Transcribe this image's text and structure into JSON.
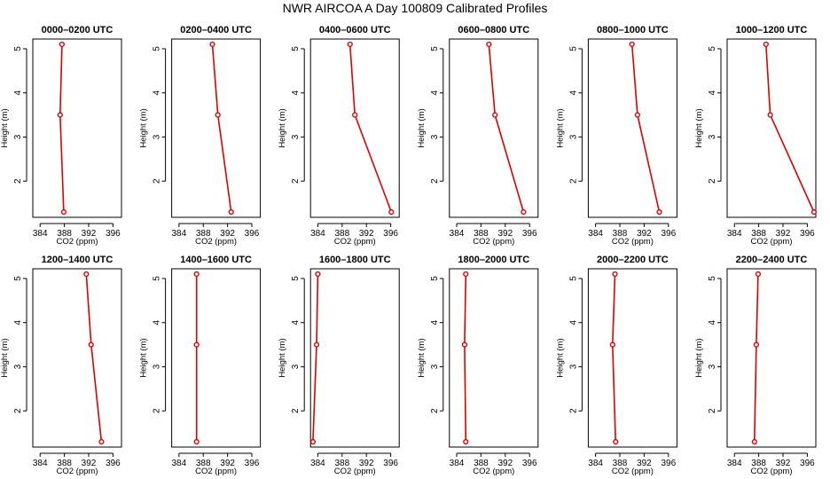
{
  "figure": {
    "title": "NWR AIRCOA A  Day 100809  Calibrated Profiles"
  },
  "style": {
    "line_color": "#dd0000",
    "point_fill": "#ffffff",
    "axis_color": "#000000"
  },
  "chart_data": [
    {
      "type": "line",
      "title": "0000–0200 UTC",
      "xlabel": "CO2 (ppm)",
      "ylabel": "Height (m)",
      "xlim": [
        382.8,
        397.4
      ],
      "ylim": [
        1.18,
        5.22
      ],
      "grid": false,
      "x_ticks": [
        "384",
        "388",
        "392",
        "396"
      ],
      "x_tick_values": [
        384,
        388,
        392,
        396
      ],
      "y_ticks": [
        "2",
        "3",
        "4",
        "5"
      ],
      "y_tick_values": [
        2,
        3,
        4,
        5
      ],
      "series": [
        {
          "x": [
            387.6,
            387.3,
            387.9
          ],
          "y": [
            5.1,
            3.5,
            1.3
          ]
        }
      ]
    },
    {
      "type": "line",
      "title": "0200–0400 UTC",
      "xlabel": "CO2 (ppm)",
      "ylabel": "Height (m)",
      "xlim": [
        382.8,
        397.4
      ],
      "ylim": [
        1.18,
        5.22
      ],
      "grid": false,
      "x_ticks": [
        "384",
        "388",
        "392",
        "396"
      ],
      "x_tick_values": [
        384,
        388,
        392,
        396
      ],
      "y_ticks": [
        "2",
        "3",
        "4",
        "5"
      ],
      "y_tick_values": [
        2,
        3,
        4,
        5
      ],
      "series": [
        {
          "x": [
            389.5,
            390.4,
            392.6
          ],
          "y": [
            5.1,
            3.5,
            1.3
          ]
        }
      ]
    },
    {
      "type": "line",
      "title": "0400–0600 UTC",
      "xlabel": "CO2 (ppm)",
      "ylabel": "Height (m)",
      "xlim": [
        382.8,
        397.4
      ],
      "ylim": [
        1.18,
        5.22
      ],
      "grid": false,
      "x_ticks": [
        "384",
        "388",
        "392",
        "396"
      ],
      "x_tick_values": [
        384,
        388,
        392,
        396
      ],
      "y_ticks": [
        "2",
        "3",
        "4",
        "5"
      ],
      "y_tick_values": [
        2,
        3,
        4,
        5
      ],
      "series": [
        {
          "x": [
            389.3,
            390.1,
            396.1
          ],
          "y": [
            5.1,
            3.5,
            1.3
          ]
        }
      ]
    },
    {
      "type": "line",
      "title": "0600–0800 UTC",
      "xlabel": "CO2 (ppm)",
      "ylabel": "Height (m)",
      "xlim": [
        382.8,
        397.4
      ],
      "ylim": [
        1.18,
        5.22
      ],
      "grid": false,
      "x_ticks": [
        "384",
        "388",
        "392",
        "396"
      ],
      "x_tick_values": [
        384,
        388,
        392,
        396
      ],
      "y_ticks": [
        "2",
        "3",
        "4",
        "5"
      ],
      "y_tick_values": [
        2,
        3,
        4,
        5
      ],
      "series": [
        {
          "x": [
            389.3,
            390.3,
            395.0
          ],
          "y": [
            5.1,
            3.5,
            1.3
          ]
        }
      ]
    },
    {
      "type": "line",
      "title": "0800–1000 UTC",
      "xlabel": "CO2 (ppm)",
      "ylabel": "Height (m)",
      "xlim": [
        382.8,
        397.4
      ],
      "ylim": [
        1.18,
        5.22
      ],
      "grid": false,
      "x_ticks": [
        "384",
        "388",
        "392",
        "396"
      ],
      "x_tick_values": [
        384,
        388,
        392,
        396
      ],
      "y_ticks": [
        "2",
        "3",
        "4",
        "5"
      ],
      "y_tick_values": [
        2,
        3,
        4,
        5
      ],
      "series": [
        {
          "x": [
            390.0,
            390.9,
            394.5
          ],
          "y": [
            5.1,
            3.5,
            1.3
          ]
        }
      ]
    },
    {
      "type": "line",
      "title": "1000–1200 UTC",
      "xlabel": "CO2 (ppm)",
      "ylabel": "Height (m)",
      "xlim": [
        382.8,
        397.4
      ],
      "ylim": [
        1.18,
        5.22
      ],
      "grid": false,
      "x_ticks": [
        "384",
        "388",
        "392",
        "396"
      ],
      "x_tick_values": [
        384,
        388,
        392,
        396
      ],
      "y_ticks": [
        "2",
        "3",
        "4",
        "5"
      ],
      "y_tick_values": [
        2,
        3,
        4,
        5
      ],
      "series": [
        {
          "x": [
            389.2,
            389.9,
            397.1
          ],
          "y": [
            5.1,
            3.5,
            1.3
          ]
        }
      ]
    },
    {
      "type": "line",
      "title": "1200–1400 UTC",
      "xlabel": "CO2 (ppm)",
      "ylabel": "Height (m)",
      "xlim": [
        382.8,
        397.4
      ],
      "ylim": [
        1.18,
        5.22
      ],
      "grid": false,
      "x_ticks": [
        "384",
        "388",
        "392",
        "396"
      ],
      "x_tick_values": [
        384,
        388,
        392,
        396
      ],
      "y_ticks": [
        "2",
        "3",
        "4",
        "5"
      ],
      "y_tick_values": [
        2,
        3,
        4,
        5
      ],
      "series": [
        {
          "x": [
            391.6,
            392.4,
            394.1
          ],
          "y": [
            5.1,
            3.5,
            1.3
          ]
        }
      ]
    },
    {
      "type": "line",
      "title": "1400–1600 UTC",
      "xlabel": "CO2 (ppm)",
      "ylabel": "Height (m)",
      "xlim": [
        382.8,
        397.4
      ],
      "ylim": [
        1.18,
        5.22
      ],
      "grid": false,
      "x_ticks": [
        "384",
        "388",
        "392",
        "396"
      ],
      "x_tick_values": [
        384,
        388,
        392,
        396
      ],
      "y_ticks": [
        "2",
        "3",
        "4",
        "5"
      ],
      "y_tick_values": [
        2,
        3,
        4,
        5
      ],
      "series": [
        {
          "x": [
            386.9,
            386.9,
            386.9
          ],
          "y": [
            5.1,
            3.5,
            1.3
          ]
        }
      ]
    },
    {
      "type": "line",
      "title": "1600–1800 UTC",
      "xlabel": "CO2 (ppm)",
      "ylabel": "Height (m)",
      "xlim": [
        382.8,
        397.4
      ],
      "ylim": [
        1.18,
        5.22
      ],
      "grid": false,
      "x_ticks": [
        "384",
        "388",
        "392",
        "396"
      ],
      "x_tick_values": [
        384,
        388,
        392,
        396
      ],
      "y_ticks": [
        "2",
        "3",
        "4",
        "5"
      ],
      "y_tick_values": [
        2,
        3,
        4,
        5
      ],
      "series": [
        {
          "x": [
            384.0,
            383.8,
            383.2
          ],
          "y": [
            5.1,
            3.5,
            1.3
          ]
        }
      ]
    },
    {
      "type": "line",
      "title": "1800–2000 UTC",
      "xlabel": "CO2 (ppm)",
      "ylabel": "Height (m)",
      "xlim": [
        382.8,
        397.4
      ],
      "ylim": [
        1.18,
        5.22
      ],
      "grid": false,
      "x_ticks": [
        "384",
        "388",
        "392",
        "396"
      ],
      "x_tick_values": [
        384,
        388,
        392,
        396
      ],
      "y_ticks": [
        "2",
        "3",
        "4",
        "5"
      ],
      "y_tick_values": [
        2,
        3,
        4,
        5
      ],
      "series": [
        {
          "x": [
            385.5,
            385.3,
            385.5
          ],
          "y": [
            5.1,
            3.5,
            1.3
          ]
        }
      ]
    },
    {
      "type": "line",
      "title": "2000–2200 UTC",
      "xlabel": "CO2 (ppm)",
      "ylabel": "Height (m)",
      "xlim": [
        382.8,
        397.4
      ],
      "ylim": [
        1.18,
        5.22
      ],
      "grid": false,
      "x_ticks": [
        "384",
        "388",
        "392",
        "396"
      ],
      "x_tick_values": [
        384,
        388,
        392,
        396
      ],
      "y_ticks": [
        "2",
        "3",
        "4",
        "5"
      ],
      "y_tick_values": [
        2,
        3,
        4,
        5
      ],
      "series": [
        {
          "x": [
            387.2,
            386.8,
            387.3
          ],
          "y": [
            5.1,
            3.5,
            1.3
          ]
        }
      ]
    },
    {
      "type": "line",
      "title": "2200–2400 UTC",
      "xlabel": "CO2 (ppm)",
      "ylabel": "Height (m)",
      "xlim": [
        382.8,
        397.4
      ],
      "ylim": [
        1.18,
        5.22
      ],
      "grid": false,
      "x_ticks": [
        "384",
        "388",
        "392",
        "396"
      ],
      "x_tick_values": [
        384,
        388,
        392,
        396
      ],
      "y_ticks": [
        "2",
        "3",
        "4",
        "5"
      ],
      "y_tick_values": [
        2,
        3,
        4,
        5
      ],
      "series": [
        {
          "x": [
            387.9,
            387.6,
            387.3
          ],
          "y": [
            5.1,
            3.5,
            1.3
          ]
        }
      ]
    }
  ]
}
